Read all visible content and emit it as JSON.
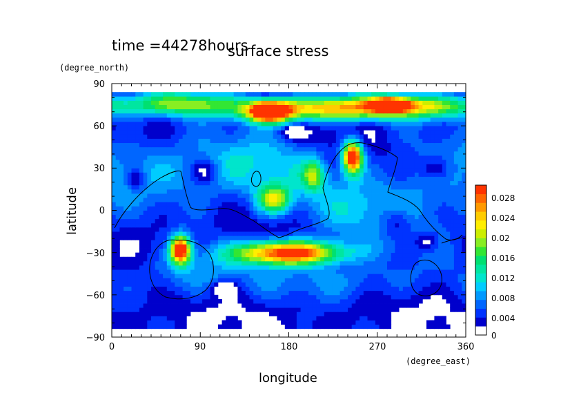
{
  "chart_data": {
    "type": "heatmap",
    "title": "surface stress",
    "subtitle": "time =44278hours",
    "xlabel": "longitude",
    "ylabel": "latitude",
    "xunit": "(degree_east)",
    "yunit": "(degree_north)",
    "xlim": [
      0,
      360
    ],
    "ylim": [
      -90,
      90
    ],
    "xticks": [
      "0",
      "90",
      "180",
      "270",
      "360"
    ],
    "yticks": [
      "90",
      "60",
      "30",
      "0",
      "−30",
      "−60",
      "−90"
    ],
    "grid": false,
    "colorbar": {
      "ticks": [
        "0",
        "0.004",
        "0.008",
        "0.012",
        "0.016",
        "0.02",
        "0.024",
        "0.028"
      ],
      "range": [
        0,
        0.03
      ],
      "colors": [
        "#ffffff",
        "#0000cc",
        "#0033ff",
        "#0066ff",
        "#0099ff",
        "#00ccff",
        "#00e5cc",
        "#00e6a0",
        "#00e070",
        "#33e633",
        "#88ee22",
        "#ccee00",
        "#ffee00",
        "#ffcc00",
        "#ff9900",
        "#ff6600",
        "#ff3300"
      ]
    },
    "field_description": {
      "blobs": [
        {
          "lon": 75,
          "lat": 76,
          "sx": 40,
          "sy": 6,
          "v": 0.014
        },
        {
          "lon": 200,
          "lat": 72,
          "sx": 55,
          "sy": 6,
          "v": 0.018
        },
        {
          "lon": 300,
          "lat": 74,
          "sx": 55,
          "sy": 6,
          "v": 0.018
        },
        {
          "lon": 160,
          "lat": 70,
          "sx": 14,
          "sy": 5,
          "v": 0.03
        },
        {
          "lon": 282,
          "lat": 75,
          "sx": 12,
          "sy": 3,
          "v": 0.029
        },
        {
          "lon": 245,
          "lat": 38,
          "sx": 7,
          "sy": 8,
          "v": 0.03
        },
        {
          "lon": 70,
          "lat": -28,
          "sx": 7,
          "sy": 7,
          "v": 0.03
        },
        {
          "lon": 180,
          "lat": -30,
          "sx": 38,
          "sy": 6,
          "v": 0.028
        },
        {
          "lon": 165,
          "lat": 8,
          "sx": 12,
          "sy": 7,
          "v": 0.016
        },
        {
          "lon": 205,
          "lat": 25,
          "sx": 8,
          "sy": 8,
          "v": 0.012
        },
        {
          "lon": 150,
          "lat": 30,
          "sx": 40,
          "sy": 18,
          "v": 0.007
        },
        {
          "lon": 240,
          "lat": 0,
          "sx": 40,
          "sy": 20,
          "v": 0.006
        },
        {
          "lon": 60,
          "lat": 30,
          "sx": 50,
          "sy": 18,
          "v": 0.006
        },
        {
          "lon": 320,
          "lat": 10,
          "sx": 40,
          "sy": 30,
          "v": 0.005
        },
        {
          "lon": 80,
          "lat": -45,
          "sx": 40,
          "sy": 12,
          "v": 0.006
        },
        {
          "lon": 230,
          "lat": -50,
          "sx": 60,
          "sy": 10,
          "v": 0.005
        }
      ]
    }
  }
}
